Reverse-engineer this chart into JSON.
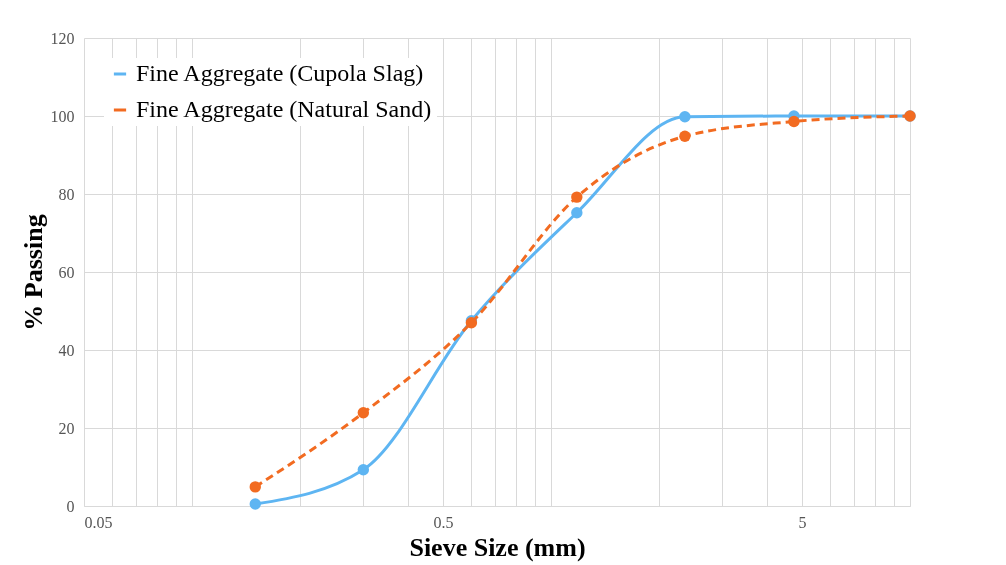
{
  "chart_data": {
    "type": "line",
    "xlabel": "Sieve Size (mm)",
    "ylabel": "% Passing",
    "x": [
      0.15,
      0.3,
      0.6,
      1.18,
      2.36,
      4.75,
      10
    ],
    "series": [
      {
        "name": "Fine Aggregate (Cupola Slag)",
        "color": "#5eb5f2",
        "values": [
          0.5,
          9.3,
          47.5,
          75.2,
          99.8,
          100,
          100
        ],
        "line_style": "solid"
      },
      {
        "name": "Fine Aggregate (Natural Sand)",
        "color": "#f26b21",
        "values": [
          4.9,
          23.9,
          47,
          79.2,
          94.8,
          98.6,
          100
        ],
        "line_style": "dashed"
      }
    ],
    "log": "x",
    "xlim": [
      0.05,
      10
    ],
    "ylim": [
      0,
      120
    ],
    "xticks": [
      0.05,
      {
        "value": 0.06,
        "label": null
      },
      {
        "value": 0.07,
        "label": null
      },
      {
        "value": 0.08,
        "label": null
      },
      {
        "value": 0.09,
        "label": null
      },
      {
        "value": 0.1,
        "label": null
      },
      {
        "value": 0.2,
        "label": null
      },
      {
        "value": 0.3,
        "label": null
      },
      {
        "value": 0.4,
        "label": null
      },
      0.5,
      {
        "value": 0.6,
        "label": null
      },
      {
        "value": 0.7,
        "label": null
      },
      {
        "value": 0.8,
        "label": null
      },
      {
        "value": 0.9,
        "label": null
      },
      {
        "value": 1,
        "label": null
      },
      {
        "value": 2,
        "label": null
      },
      {
        "value": 3,
        "label": null
      },
      {
        "value": 4,
        "label": null
      },
      5,
      {
        "value": 6,
        "label": null
      },
      {
        "value": 7,
        "label": null
      },
      {
        "value": 8,
        "label": null
      },
      {
        "value": 9,
        "label": null
      },
      {
        "value": 10,
        "label": null
      }
    ],
    "yticks": [
      0,
      20,
      40,
      60,
      80,
      100,
      120
    ],
    "grid": true,
    "legend": "top left",
    "marker": "circle"
  }
}
